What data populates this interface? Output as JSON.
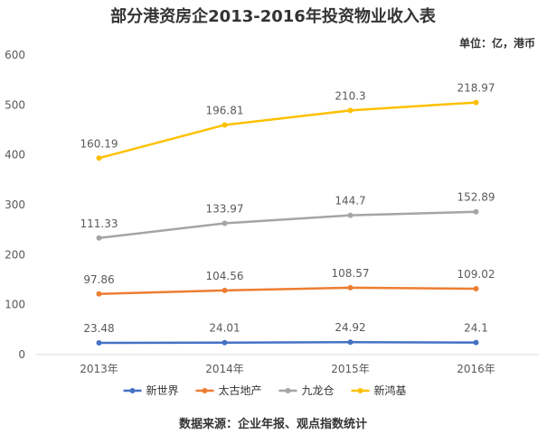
{
  "chart_data": {
    "type": "line",
    "title": "部分港资房企2013-2016年投资物业收入表",
    "unit_note": "单位：亿，港币",
    "source_note": "数据来源：企业年报、观点指数统计",
    "categories": [
      "2013年",
      "2014年",
      "2015年",
      "2016年"
    ],
    "ylim": [
      0,
      600
    ],
    "yticks": [
      0,
      100,
      200,
      300,
      400,
      500,
      600
    ],
    "grid": false,
    "legend_position": "bottom",
    "series": [
      {
        "name": "新世界",
        "color": "#4472C4",
        "values": [
          23.48,
          24.01,
          24.92,
          24.1
        ],
        "labels": [
          "23.48",
          "24.01",
          "24.92",
          "24.1"
        ]
      },
      {
        "name": "太古地产",
        "color": "#ED7D31",
        "values": [
          121.5,
          128.5,
          134.0,
          132.0
        ],
        "labels": [
          "97.86",
          "104.56",
          "108.57",
          "109.02"
        ]
      },
      {
        "name": "九龙仓",
        "color": "#A5A5A5",
        "values": [
          233.5,
          263.0,
          279.0,
          286.0
        ],
        "labels": [
          "111.33",
          "133.97",
          "144.7",
          "152.89"
        ]
      },
      {
        "name": "新鸿基",
        "color": "#FFC000",
        "values": [
          393.5,
          460.0,
          489.0,
          505.0
        ],
        "labels": [
          "160.19",
          "196.81",
          "210.3",
          "218.97"
        ]
      }
    ]
  }
}
